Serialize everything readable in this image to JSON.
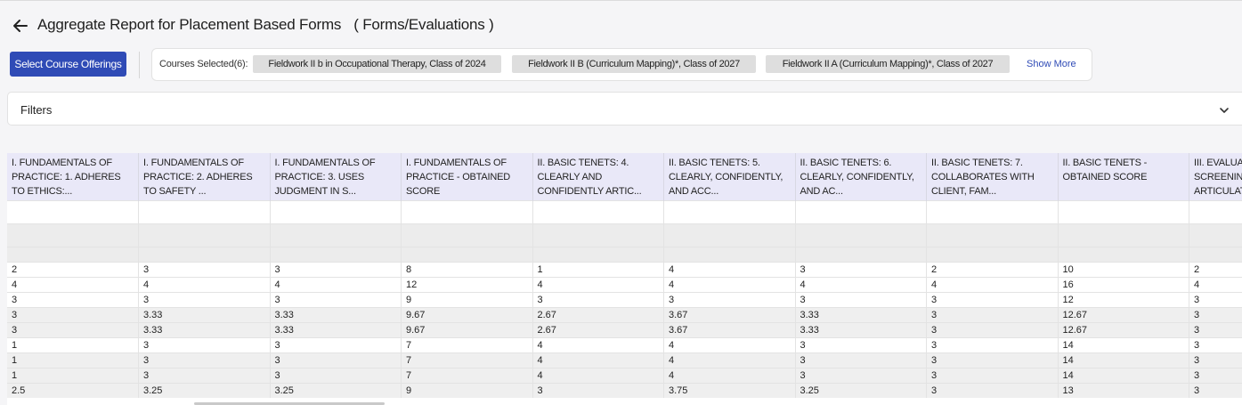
{
  "page": {
    "title": "Aggregate Report for Placement Based Forms",
    "subtitle": "( Forms/Evaluations )"
  },
  "toolbar": {
    "select_button": "Select Course Offerings",
    "courses_label": "Courses Selected(6):",
    "chips": [
      "Fieldwork II b in Occupational Therapy, Class of 2024",
      "Fieldwork II B (Curriculum Mapping)*, Class of 2027",
      "Fieldwork II A (Curriculum Mapping)*, Class of 2027"
    ],
    "show_more": "Show More"
  },
  "filters": {
    "label": "Filters",
    "icon": "chevron-down-icon"
  },
  "table": {
    "headers": [
      "I. FUNDAMENTALS OF PRACTICE: 1. ADHERES TO ETHICS:...",
      "I. FUNDAMENTALS OF PRACTICE: 2. ADHERES TO SAFETY ...",
      "I. FUNDAMENTALS OF PRACTICE: 3. USES JUDGMENT IN S...",
      "I. FUNDAMENTALS OF PRACTICE - OBTAINED SCORE",
      "II. BASIC TENETS: 4. CLEARLY AND CONFIDENTLY ARTIC...",
      "II. BASIC TENETS: 5. CLEARLY, CONFIDENTLY, AND ACC...",
      "II. BASIC TENETS: 6. CLEARLY, CONFIDENTLY, AND AC...",
      "II. BASIC TENETS: 7. COLLABORATES WITH CLIENT, FAM...",
      "II. BASIC TENETS - OBTAINED SCORE",
      "III. EVALUATION AND SCREENING: ... ARTICULATE..."
    ],
    "rows": [
      [
        "2",
        "3",
        "3",
        "8",
        "1",
        "4",
        "3",
        "2",
        "10",
        "2"
      ],
      [
        "4",
        "4",
        "4",
        "12",
        "4",
        "4",
        "4",
        "4",
        "16",
        "4"
      ],
      [
        "3",
        "3",
        "3",
        "9",
        "3",
        "3",
        "3",
        "3",
        "12",
        "3"
      ],
      [
        "3",
        "3.33",
        "3.33",
        "9.67",
        "2.67",
        "3.67",
        "3.33",
        "3",
        "12.67",
        "3"
      ],
      [
        "3",
        "3.33",
        "3.33",
        "9.67",
        "2.67",
        "3.67",
        "3.33",
        "3",
        "12.67",
        "3"
      ],
      [
        "1",
        "3",
        "3",
        "7",
        "4",
        "4",
        "3",
        "3",
        "14",
        "3"
      ],
      [
        "1",
        "3",
        "3",
        "7",
        "4",
        "4",
        "3",
        "3",
        "14",
        "3"
      ],
      [
        "1",
        "3",
        "3",
        "7",
        "4",
        "4",
        "3",
        "3",
        "14",
        "3"
      ],
      [
        "2.5",
        "3.25",
        "3.25",
        "9",
        "3",
        "3.75",
        "3.25",
        "3",
        "13",
        "3"
      ]
    ]
  },
  "colors": {
    "accent": "#2f4bb6",
    "header_bg": "#e9e8f8",
    "chip_bg": "#dedede"
  }
}
